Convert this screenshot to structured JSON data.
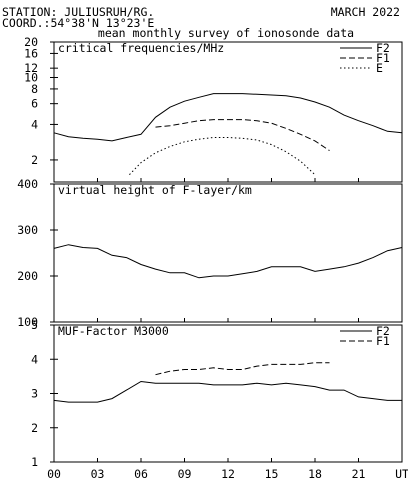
{
  "header": {
    "station": "STATION: JULIUSRUH/RG.",
    "date": "MARCH 2022",
    "coord": "COORD.:54°38'N 13°23'E",
    "subtitle": "mean monthly survey of ionosonde data"
  },
  "x_axis": {
    "range": [
      0,
      24
    ],
    "ticks": [
      0,
      3,
      6,
      9,
      12,
      15,
      18,
      21,
      24
    ],
    "tick_labels": [
      "00",
      "03",
      "06",
      "09",
      "12",
      "15",
      "18",
      "21",
      "UT"
    ]
  },
  "chart_data": [
    {
      "type": "line",
      "title": "critical frequencies/MHz",
      "yscale": "log",
      "ylim": [
        1.3,
        20
      ],
      "yticks": [
        2,
        4,
        6,
        8,
        10,
        12,
        16,
        20
      ],
      "ytick_labels": [
        "2",
        "4",
        "6",
        "8",
        "10",
        "12",
        "16",
        "20"
      ],
      "legend_position": "top-right",
      "series": [
        {
          "name": "F2",
          "style": "solid",
          "x": [
            0,
            1,
            2,
            3,
            4,
            5,
            6,
            7,
            8,
            9,
            10,
            11,
            12,
            13,
            14,
            15,
            16,
            17,
            18,
            19,
            20,
            21,
            22,
            23,
            24
          ],
          "y": [
            3.4,
            3.15,
            3.05,
            3.0,
            2.9,
            3.1,
            3.3,
            4.6,
            5.6,
            6.3,
            6.8,
            7.3,
            7.3,
            7.3,
            7.2,
            7.1,
            7.0,
            6.7,
            6.2,
            5.6,
            4.8,
            4.3,
            3.9,
            3.5,
            3.4
          ]
        },
        {
          "name": "F1",
          "style": "dashed",
          "x": [
            7,
            8,
            9,
            10,
            11,
            12,
            13,
            14,
            15,
            16,
            17,
            18,
            19
          ],
          "y": [
            3.8,
            3.9,
            4.1,
            4.3,
            4.4,
            4.4,
            4.4,
            4.3,
            4.1,
            3.7,
            3.3,
            2.9,
            2.4
          ]
        },
        {
          "name": "E",
          "style": "dotted",
          "x": [
            5.2,
            6,
            7,
            8,
            9,
            10,
            11,
            12,
            13,
            14,
            15,
            16,
            17,
            18
          ],
          "y": [
            1.5,
            1.9,
            2.3,
            2.6,
            2.85,
            3.0,
            3.1,
            3.1,
            3.05,
            2.95,
            2.7,
            2.35,
            1.95,
            1.5
          ]
        }
      ]
    },
    {
      "type": "line",
      "title": "virtual height of F-layer/km",
      "ylim": [
        100,
        400
      ],
      "yticks": [
        100,
        200,
        300,
        400
      ],
      "ytick_labels": [
        "100",
        "200",
        "300",
        "400"
      ],
      "series": [
        {
          "style": "solid",
          "x": [
            0,
            1,
            2,
            3,
            4,
            5,
            6,
            7,
            8,
            9,
            10,
            11,
            12,
            13,
            14,
            15,
            16,
            17,
            18,
            19,
            20,
            21,
            22,
            23,
            24
          ],
          "y": [
            260,
            268,
            262,
            260,
            245,
            240,
            225,
            215,
            207,
            207,
            196,
            200,
            200,
            205,
            210,
            220,
            220,
            220,
            210,
            215,
            220,
            228,
            240,
            255,
            262
          ]
        }
      ]
    },
    {
      "type": "line",
      "title": "MUF-Factor M3000",
      "ylim": [
        1,
        5
      ],
      "yticks": [
        1,
        2,
        3,
        4,
        5
      ],
      "ytick_labels": [
        "1",
        "2",
        "3",
        "4",
        "5"
      ],
      "legend_position": "top-right",
      "series": [
        {
          "name": "F2",
          "style": "solid",
          "x": [
            0,
            1,
            2,
            3,
            4,
            5,
            6,
            7,
            8,
            9,
            10,
            11,
            12,
            13,
            14,
            15,
            16,
            17,
            18,
            19,
            20,
            21,
            22,
            23,
            24
          ],
          "y": [
            2.8,
            2.75,
            2.75,
            2.75,
            2.85,
            3.1,
            3.35,
            3.3,
            3.3,
            3.3,
            3.3,
            3.25,
            3.25,
            3.25,
            3.3,
            3.25,
            3.3,
            3.25,
            3.2,
            3.1,
            3.1,
            2.9,
            2.85,
            2.8,
            2.8
          ]
        },
        {
          "name": "F1",
          "style": "dashed",
          "x": [
            7,
            8,
            9,
            10,
            11,
            12,
            13,
            14,
            15,
            16,
            17,
            18,
            19
          ],
          "y": [
            3.55,
            3.65,
            3.7,
            3.7,
            3.75,
            3.7,
            3.7,
            3.8,
            3.85,
            3.85,
            3.85,
            3.9,
            3.9
          ]
        }
      ]
    }
  ]
}
